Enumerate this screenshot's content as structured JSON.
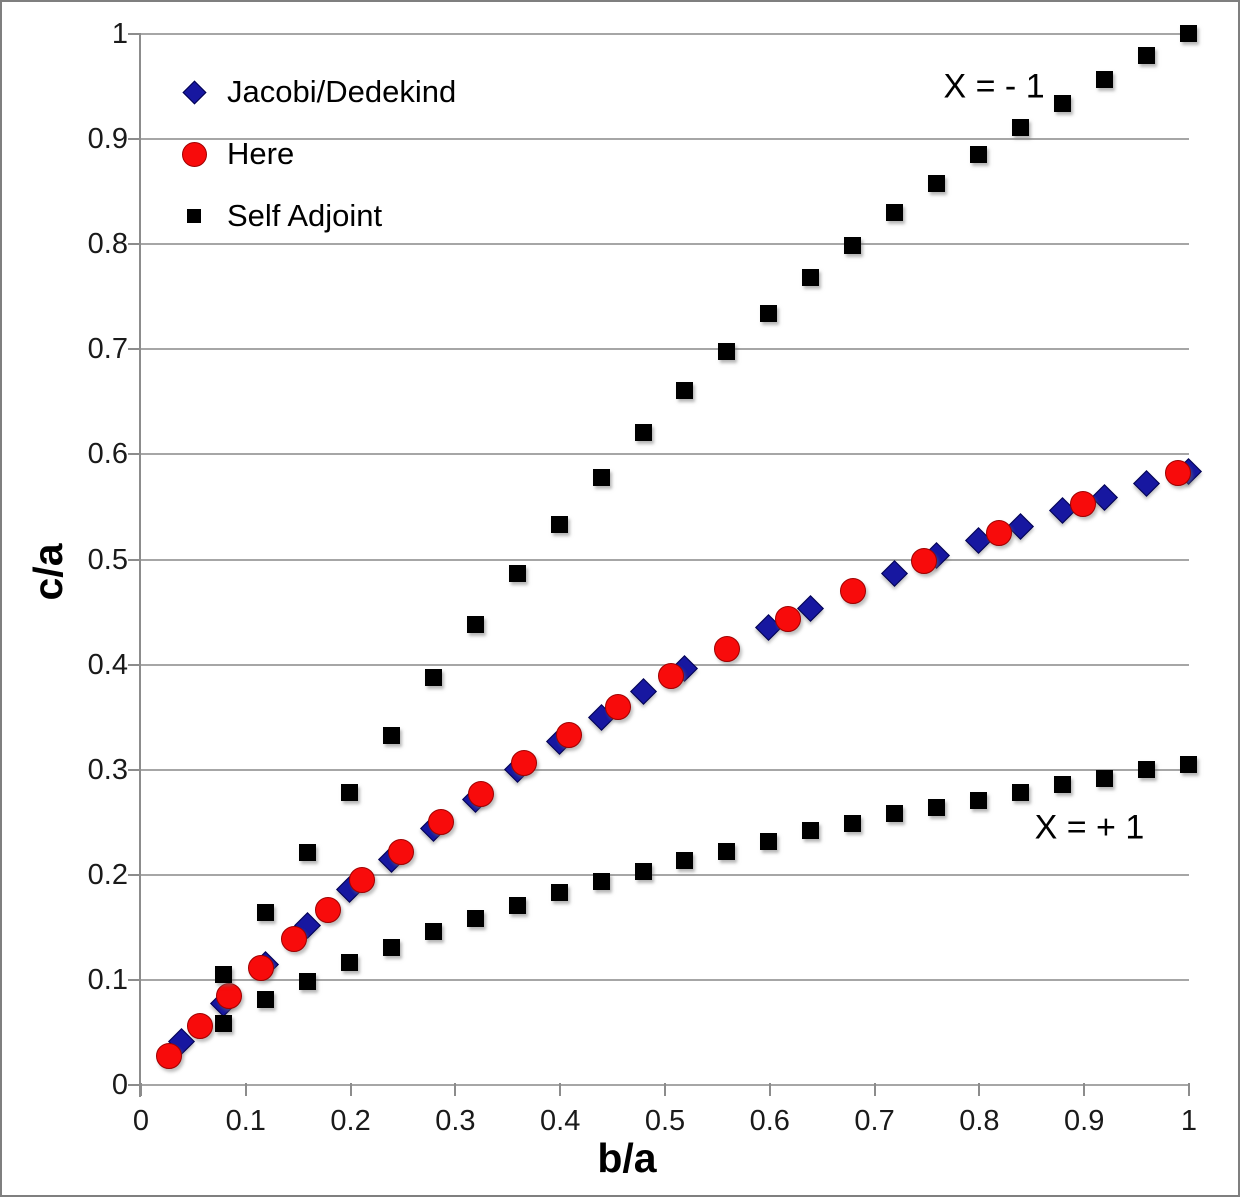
{
  "figure": {
    "background": "#FFFFFF",
    "border_color": "#7F7F7F"
  },
  "chart_data": {
    "type": "scatter",
    "title": "",
    "xlabel": "b/a",
    "ylabel": "c/a",
    "xlim": [
      0,
      1
    ],
    "ylim": [
      0,
      1
    ],
    "x_tick_labels": [
      "0",
      "0.1",
      "0.2",
      "0.3",
      "0.4",
      "0.5",
      "0.6",
      "0.7",
      "0.8",
      "0.9",
      "1"
    ],
    "y_tick_labels": [
      "0",
      "0.1",
      "0.2",
      "0.3",
      "0.4",
      "0.5",
      "0.6",
      "0.7",
      "0.8",
      "0.9",
      "1"
    ],
    "grid": "horizontal-only",
    "grid_color": "#A6A6A6",
    "axis_color": "#8C8C8C",
    "text_color": "#000000",
    "legend": {
      "position": "top-left-inside",
      "items": [
        {
          "label": "Jacobi/Dedekind",
          "marker": "diamond",
          "color": "#1717A0"
        },
        {
          "label": "Here",
          "marker": "circle",
          "color": "#F80B0B"
        },
        {
          "label": "Self Adjoint",
          "marker": "square",
          "color": "#000000"
        }
      ]
    },
    "annotations": [
      {
        "text": "X = - 1",
        "x": 0.814,
        "y": 0.95
      },
      {
        "text": "X = + 1",
        "x": 0.905,
        "y": 0.245
      }
    ],
    "series": [
      {
        "name": "Jacobi/Dedekind",
        "marker": "diamond",
        "color": "#1717A0",
        "points": [
          [
            0.04,
            0.04
          ],
          [
            0.08,
            0.077
          ],
          [
            0.12,
            0.114
          ],
          [
            0.16,
            0.151
          ],
          [
            0.2,
            0.185
          ],
          [
            0.24,
            0.214
          ],
          [
            0.28,
            0.243
          ],
          [
            0.32,
            0.271
          ],
          [
            0.36,
            0.299
          ],
          [
            0.4,
            0.326
          ],
          [
            0.44,
            0.349
          ],
          [
            0.48,
            0.373
          ],
          [
            0.52,
            0.395
          ],
          [
            0.6,
            0.434
          ],
          [
            0.64,
            0.452
          ],
          [
            0.72,
            0.486
          ],
          [
            0.76,
            0.503
          ],
          [
            0.8,
            0.517
          ],
          [
            0.84,
            0.53
          ],
          [
            0.88,
            0.546
          ],
          [
            0.92,
            0.558
          ],
          [
            0.96,
            0.571
          ],
          [
            1.0,
            0.583
          ]
        ]
      },
      {
        "name": "Here",
        "marker": "circle",
        "color": "#F80B0B",
        "points": [
          [
            0.028,
            0.027
          ],
          [
            0.057,
            0.055
          ],
          [
            0.085,
            0.084
          ],
          [
            0.115,
            0.11
          ],
          [
            0.147,
            0.138
          ],
          [
            0.179,
            0.166
          ],
          [
            0.212,
            0.194
          ],
          [
            0.249,
            0.221
          ],
          [
            0.287,
            0.249
          ],
          [
            0.325,
            0.276
          ],
          [
            0.366,
            0.305
          ],
          [
            0.409,
            0.332
          ],
          [
            0.456,
            0.359
          ],
          [
            0.507,
            0.388
          ],
          [
            0.56,
            0.414
          ],
          [
            0.618,
            0.442
          ],
          [
            0.68,
            0.469
          ],
          [
            0.748,
            0.498
          ],
          [
            0.82,
            0.524
          ],
          [
            0.9,
            0.552
          ],
          [
            0.99,
            0.581
          ]
        ]
      },
      {
        "name": "Self Adjoint",
        "marker": "square",
        "color": "#000000",
        "branches": [
          {
            "region": "X = - 1",
            "points": [
              [
                0.08,
                0.104
              ],
              [
                0.12,
                0.163
              ],
              [
                0.16,
                0.22
              ],
              [
                0.2,
                0.277
              ],
              [
                0.24,
                0.332
              ],
              [
                0.28,
                0.387
              ],
              [
                0.32,
                0.437
              ],
              [
                0.36,
                0.486
              ],
              [
                0.4,
                0.532
              ],
              [
                0.44,
                0.577
              ],
              [
                0.48,
                0.62
              ],
              [
                0.52,
                0.66
              ],
              [
                0.56,
                0.697
              ],
              [
                0.6,
                0.733
              ],
              [
                0.64,
                0.767
              ],
              [
                0.68,
                0.798
              ],
              [
                0.72,
                0.829
              ],
              [
                0.76,
                0.857
              ],
              [
                0.8,
                0.884
              ],
              [
                0.84,
                0.91
              ],
              [
                0.88,
                0.933
              ],
              [
                0.92,
                0.956
              ],
              [
                0.96,
                0.979
              ],
              [
                1.0,
                1.0
              ]
            ]
          },
          {
            "region": "X = + 1",
            "points": [
              [
                0.08,
                0.058
              ],
              [
                0.12,
                0.08
              ],
              [
                0.16,
                0.098
              ],
              [
                0.2,
                0.116
              ],
              [
                0.24,
                0.13
              ],
              [
                0.28,
                0.145
              ],
              [
                0.32,
                0.157
              ],
              [
                0.36,
                0.17
              ],
              [
                0.4,
                0.182
              ],
              [
                0.44,
                0.193
              ],
              [
                0.48,
                0.202
              ],
              [
                0.52,
                0.213
              ],
              [
                0.56,
                0.221
              ],
              [
                0.6,
                0.231
              ],
              [
                0.64,
                0.241
              ],
              [
                0.68,
                0.248
              ],
              [
                0.72,
                0.257
              ],
              [
                0.76,
                0.263
              ],
              [
                0.8,
                0.27
              ],
              [
                0.84,
                0.277
              ],
              [
                0.88,
                0.285
              ],
              [
                0.92,
                0.291
              ],
              [
                0.96,
                0.299
              ],
              [
                1.0,
                0.304
              ]
            ]
          }
        ]
      }
    ]
  }
}
